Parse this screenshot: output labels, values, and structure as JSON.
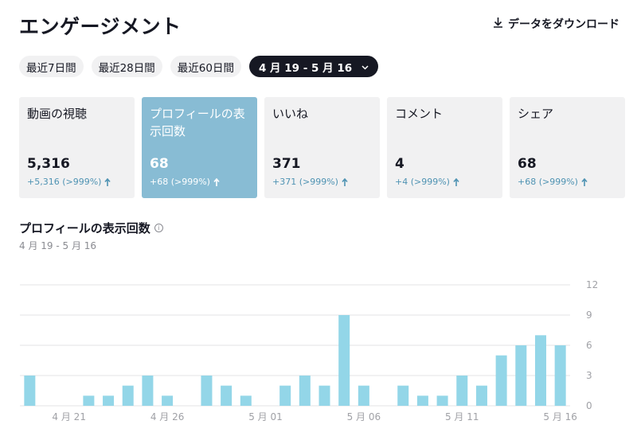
{
  "header": {
    "title": "エンゲージメント",
    "download_label": "データをダウンロード"
  },
  "ranges": [
    {
      "label": "最近7日間"
    },
    {
      "label": "最近28日間"
    },
    {
      "label": "最近60日間"
    },
    {
      "label": "4 月 19 - 5 月 16",
      "active": true
    }
  ],
  "cards": [
    {
      "title": "動画の視聴",
      "value": "5,316",
      "delta": "+5,316 (>999%)"
    },
    {
      "title": "プロフィールの表示回数",
      "value": "68",
      "delta": "+68 (>999%)",
      "selected": true
    },
    {
      "title": "いいね",
      "value": "371",
      "delta": "+371 (>999%)"
    },
    {
      "title": "コメント",
      "value": "4",
      "delta": "+4 (>999%)"
    },
    {
      "title": "シェア",
      "value": "68",
      "delta": "+68 (>999%)"
    }
  ],
  "colors": {
    "accent": "#88bcd4",
    "bar": "#93d6e8",
    "delta": "#4f93b3"
  },
  "chart_data": {
    "type": "bar",
    "title": "プロフィールの表示回数",
    "subtitle": "4 月 19 - 5 月 16",
    "categories": [
      "4 月 19",
      "4 月 20",
      "4 月 21",
      "4 月 22",
      "4 月 23",
      "4 月 24",
      "4 月 25",
      "4 月 26",
      "4 月 27",
      "4 月 28",
      "4 月 29",
      "4 月 30",
      "5 月 01",
      "5 月 02",
      "5 月 03",
      "5 月 04",
      "5 月 05",
      "5 月 06",
      "5 月 07",
      "5 月 08",
      "5 月 09",
      "5 月 10",
      "5 月 11",
      "5 月 12",
      "5 月 13",
      "5 月 14",
      "5 月 15",
      "5 月 16"
    ],
    "values": [
      3,
      0,
      0,
      1,
      1,
      2,
      3,
      1,
      0,
      3,
      2,
      1,
      0,
      2,
      3,
      2,
      9,
      2,
      0,
      2,
      1,
      1,
      3,
      2,
      5,
      6,
      7,
      6
    ],
    "x_tick_labels": [
      {
        "index": 2,
        "label": "4 月 21"
      },
      {
        "index": 7,
        "label": "4 月 26"
      },
      {
        "index": 12,
        "label": "5 月 01"
      },
      {
        "index": 17,
        "label": "5 月 06"
      },
      {
        "index": 22,
        "label": "5 月 11"
      },
      {
        "index": 27,
        "label": "5 月 16"
      }
    ],
    "y_ticks": [
      0,
      3,
      6,
      9,
      12
    ],
    "ylim": [
      0,
      12
    ],
    "y_axis_side": "right",
    "grid": true
  }
}
